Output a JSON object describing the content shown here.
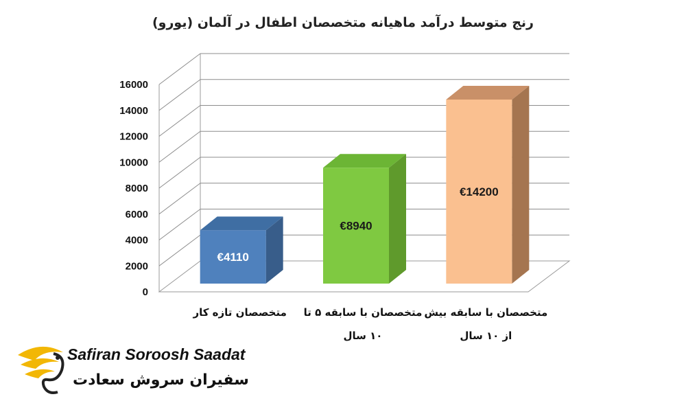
{
  "chart_data": {
    "type": "bar",
    "title": "رنج متوسط درآمد ماهیانه متخصصان اطفال در آلمان (یورو)",
    "categories": [
      [
        "متخصصان تازه کار"
      ],
      [
        "متخصصان با سابقه ۵ تا",
        "۱۰ سال"
      ],
      [
        "متخصصان با سابقه بیش",
        "از ۱۰ سال"
      ]
    ],
    "values": [
      4110,
      8940,
      14200
    ],
    "data_labels": [
      "€4110",
      "€8940",
      "€14200"
    ],
    "y_ticks": [
      "0",
      "2000",
      "4000",
      "6000",
      "8000",
      "10000",
      "12000",
      "14000",
      "16000"
    ],
    "ylim": [
      0,
      16000
    ],
    "grid": true,
    "legend": "none",
    "colors": [
      {
        "front": "#4f81bd",
        "side": "#385d8a",
        "top": "#3f6ea3",
        "label": "#ffffff"
      },
      {
        "front": "#7fc941",
        "side": "#5f9a2c",
        "top": "#6cb535",
        "label": "#1a1a1a"
      },
      {
        "front": "#fac090",
        "side": "#a57550",
        "top": "#c99068",
        "label": "#1a1a1a"
      }
    ]
  },
  "watermark": {
    "name_en": "Safiran Soroosh Saadat",
    "name_fa": "سفیران سروش سعادت"
  }
}
